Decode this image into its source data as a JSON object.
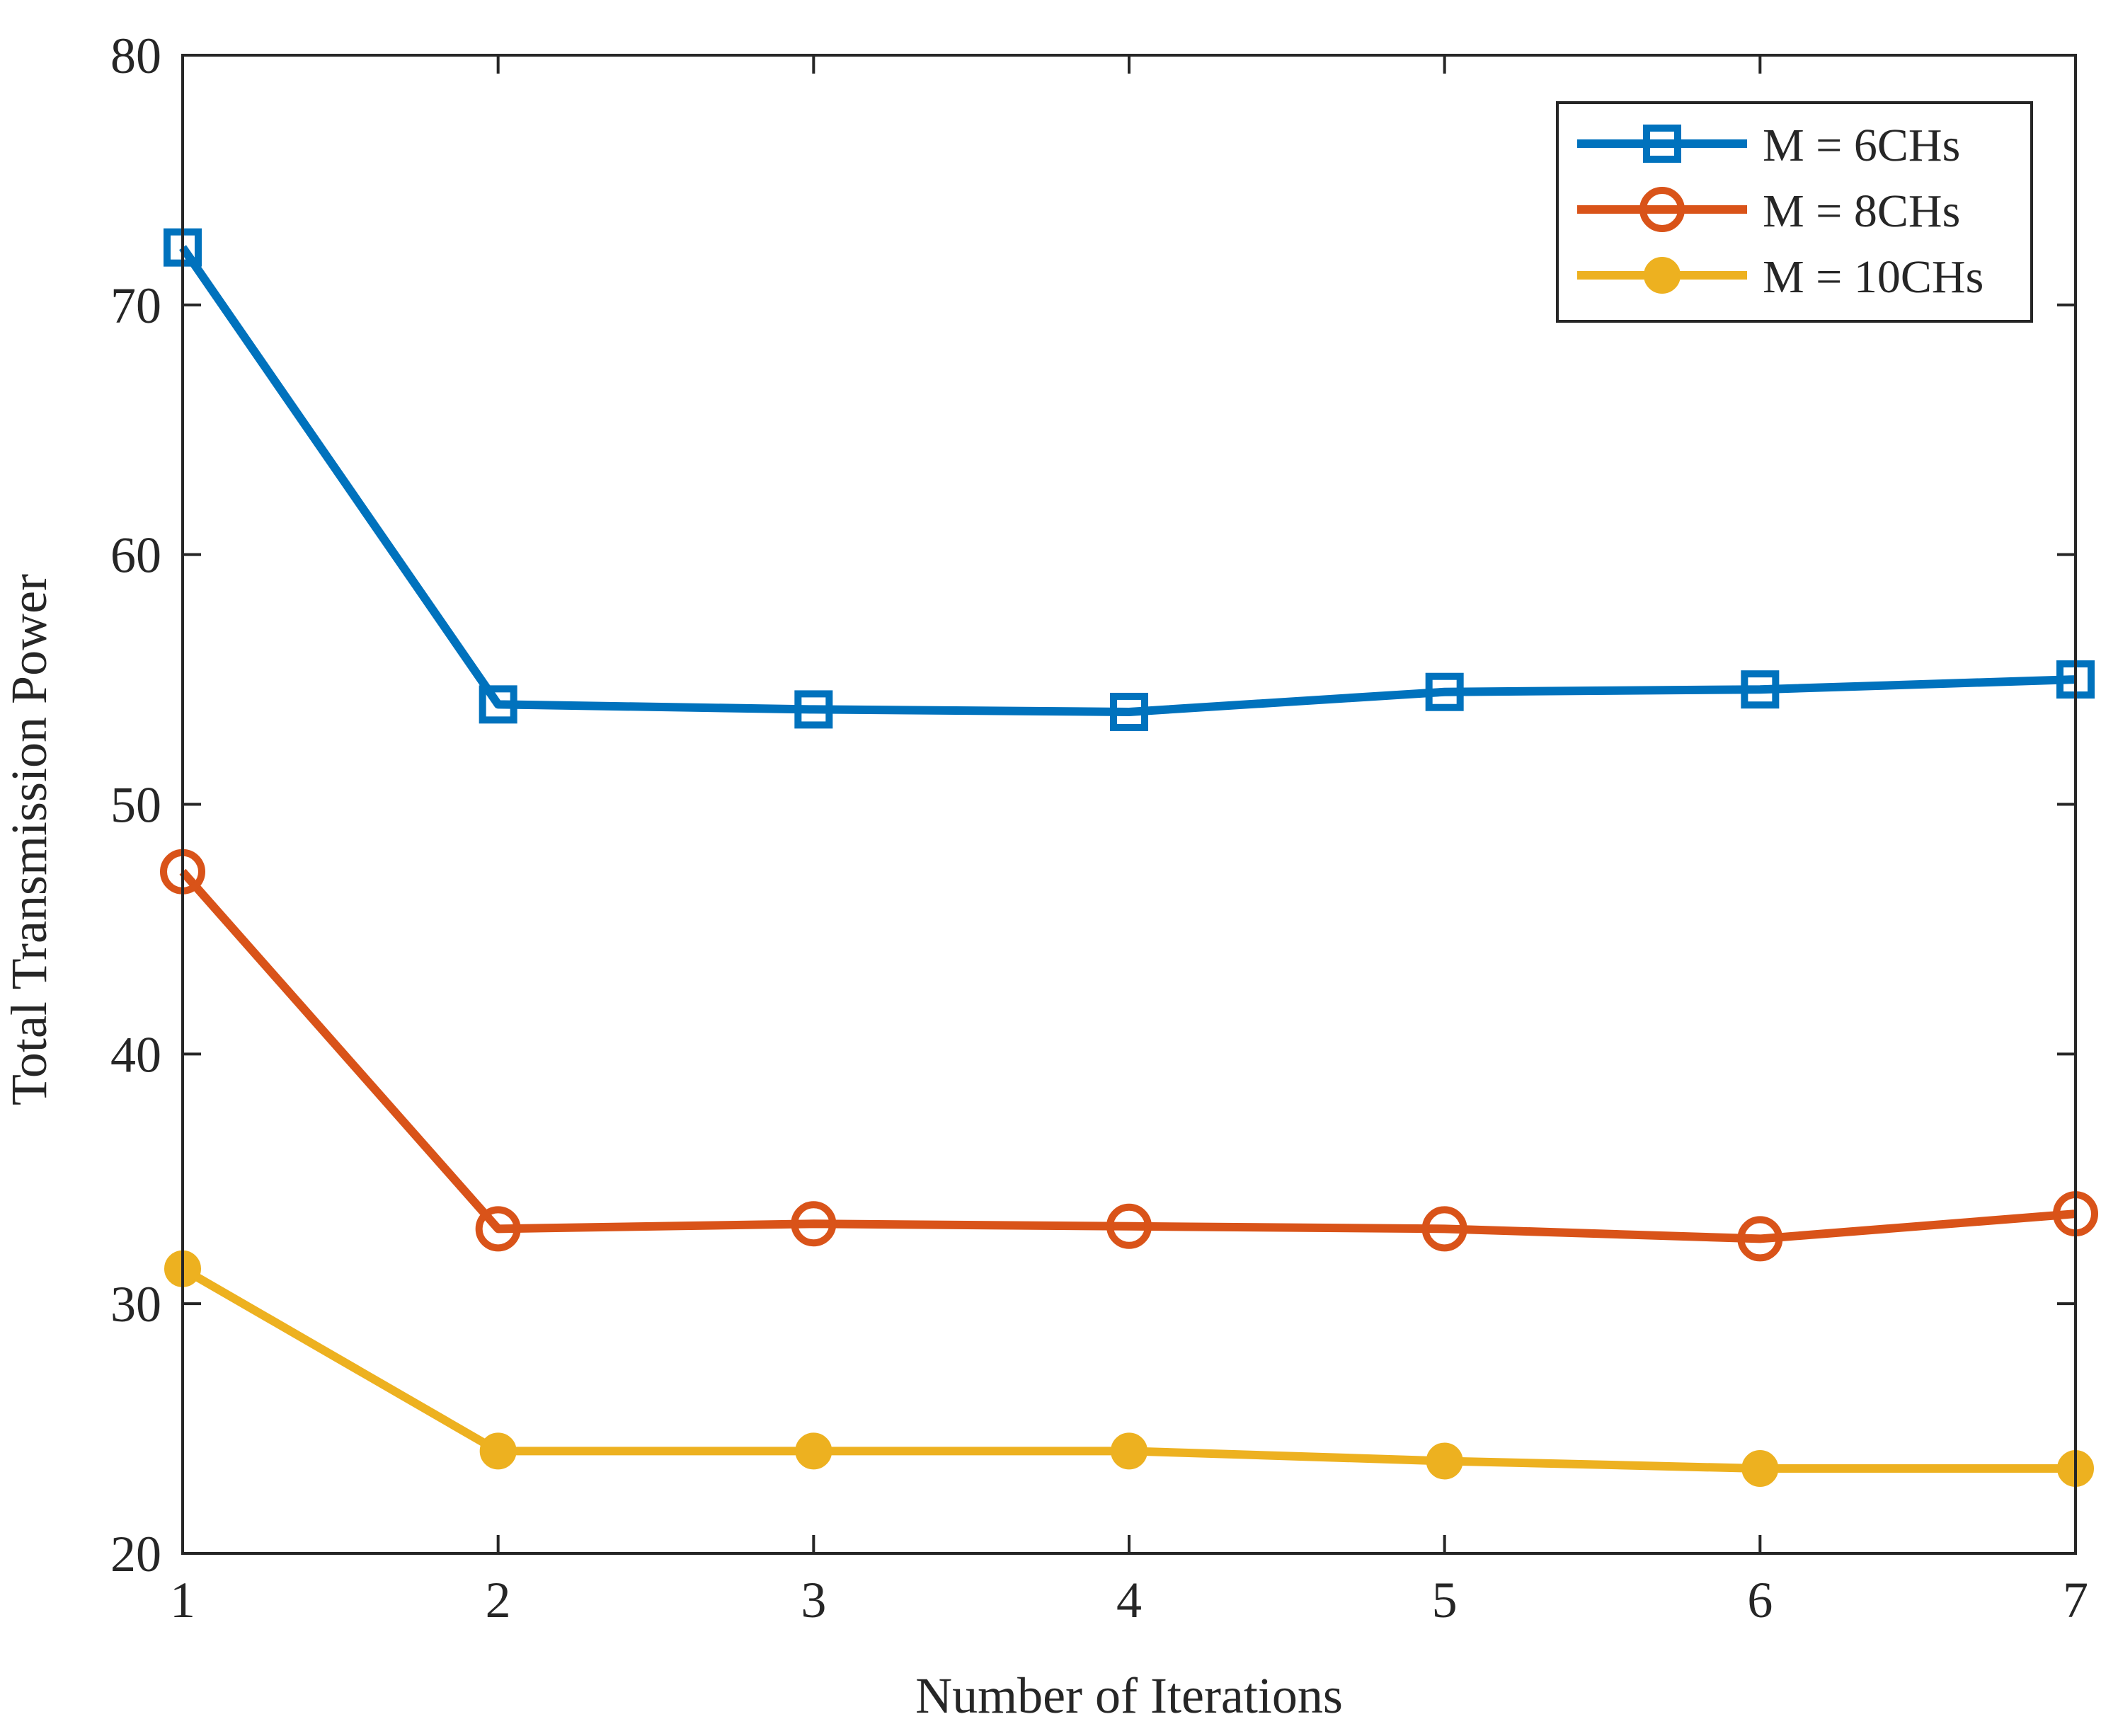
{
  "chart_data": {
    "type": "line",
    "title": "",
    "xlabel": "Number of Iterations",
    "ylabel": "Total Transmission Power",
    "xlim": [
      1,
      7
    ],
    "ylim": [
      20,
      80
    ],
    "x_ticks": [
      1,
      2,
      3,
      4,
      5,
      6,
      7
    ],
    "y_ticks": [
      20,
      30,
      40,
      50,
      60,
      70,
      80
    ],
    "x_tick_labels": [
      "1",
      "2",
      "3",
      "4",
      "5",
      "6",
      "7"
    ],
    "y_tick_labels": [
      "20",
      "30",
      "40",
      "50",
      "60",
      "70",
      "80"
    ],
    "grid": false,
    "legend_position": "top-right",
    "x": [
      1,
      2,
      3,
      4,
      5,
      6,
      7
    ],
    "series": [
      {
        "name": "M = 6CHs",
        "marker": "square",
        "color": "#0072BD",
        "values": [
          72.3,
          54.0,
          53.8,
          53.7,
          54.5,
          54.6,
          55.0
        ]
      },
      {
        "name": "M = 8CHs",
        "marker": "circle",
        "color": "#D95319",
        "values": [
          47.3,
          33.0,
          33.2,
          33.1,
          33.0,
          32.6,
          33.6
        ]
      },
      {
        "name": "M = 10CHs",
        "marker": "dot",
        "color": "#EDB120",
        "values": [
          31.4,
          24.1,
          24.1,
          24.1,
          23.7,
          23.4,
          23.4
        ]
      }
    ]
  }
}
